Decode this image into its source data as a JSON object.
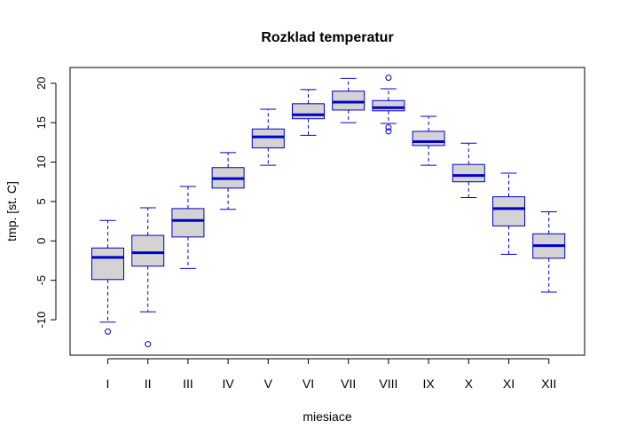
{
  "chart_data": {
    "type": "boxplot",
    "title": "Rozklad temperatur",
    "xlabel": "miesiace",
    "ylabel": "tmp. [st. C]",
    "ylim": [
      -14.5,
      22.0
    ],
    "y_ticks": [
      -10,
      -5,
      0,
      5,
      10,
      15,
      20
    ],
    "y_tick_labels": [
      "-10",
      "-5",
      "0",
      "5",
      "10",
      "15",
      "20"
    ],
    "grid": false,
    "legend": "none",
    "colors": {
      "box_fill": "#d3d3d3",
      "box_border": "#0000cd",
      "median": "#0000cd",
      "whisker": "#0000cd",
      "outlier": "#0000cd",
      "axis": "#000000",
      "text": "#000000"
    },
    "categories": [
      "I",
      "II",
      "III",
      "IV",
      "V",
      "VI",
      "VII",
      "VIII",
      "IX",
      "X",
      "XI",
      "XII"
    ],
    "boxes": [
      {
        "low": -10.3,
        "q1": -4.9,
        "median": -2.1,
        "q3": -0.9,
        "high": 2.6,
        "outliers": [
          -11.5
        ]
      },
      {
        "low": -9.0,
        "q1": -3.2,
        "median": -1.5,
        "q3": 0.7,
        "high": 4.2,
        "outliers": [
          -13.1
        ]
      },
      {
        "low": -3.5,
        "q1": 0.5,
        "median": 2.6,
        "q3": 4.1,
        "high": 6.9,
        "outliers": []
      },
      {
        "low": 4.0,
        "q1": 6.7,
        "median": 7.9,
        "q3": 9.3,
        "high": 11.2,
        "outliers": []
      },
      {
        "low": 9.6,
        "q1": 11.8,
        "median": 13.2,
        "q3": 14.2,
        "high": 16.7,
        "outliers": []
      },
      {
        "low": 13.4,
        "q1": 15.5,
        "median": 16.0,
        "q3": 17.4,
        "high": 19.2,
        "outliers": []
      },
      {
        "low": 15.0,
        "q1": 16.6,
        "median": 17.6,
        "q3": 19.0,
        "high": 20.6,
        "outliers": []
      },
      {
        "low": 14.9,
        "q1": 16.5,
        "median": 16.9,
        "q3": 17.8,
        "high": 19.3,
        "outliers": [
          14.4,
          13.9,
          20.7
        ]
      },
      {
        "low": 9.6,
        "q1": 12.1,
        "median": 12.6,
        "q3": 13.9,
        "high": 15.8,
        "outliers": []
      },
      {
        "low": 5.5,
        "q1": 7.5,
        "median": 8.3,
        "q3": 9.7,
        "high": 12.4,
        "outliers": []
      },
      {
        "low": -1.7,
        "q1": 1.9,
        "median": 4.1,
        "q3": 5.6,
        "high": 8.6,
        "outliers": []
      },
      {
        "low": -6.5,
        "q1": -2.2,
        "median": -0.6,
        "q3": 0.9,
        "high": 3.7,
        "outliers": []
      }
    ]
  }
}
